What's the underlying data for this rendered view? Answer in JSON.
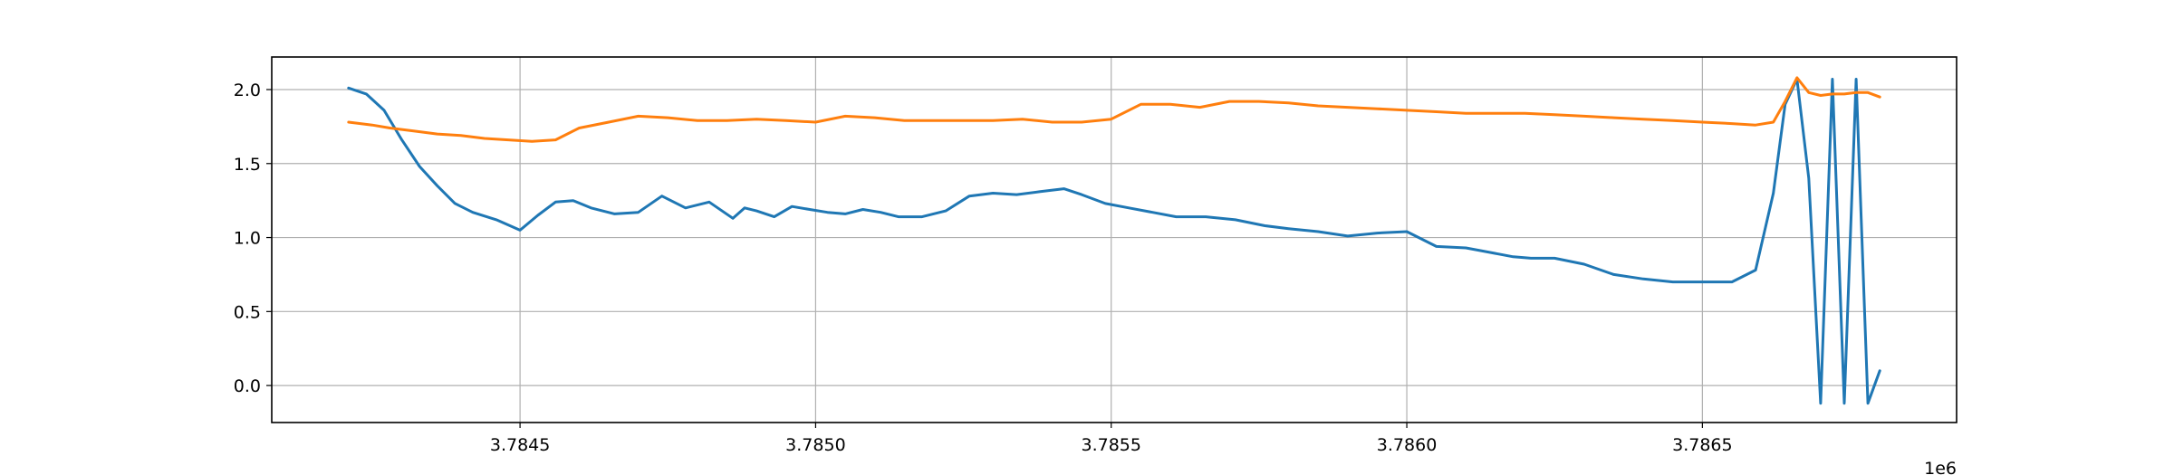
{
  "chart_data": {
    "type": "line",
    "title": "",
    "xlabel": "",
    "ylabel": "",
    "x_offset_label": "1e6",
    "xlim": [
      3.78408,
      3.78693
    ],
    "ylim": [
      -0.25,
      2.22
    ],
    "grid": true,
    "legend": "none",
    "x_ticks": [
      3.7845,
      3.785,
      3.7855,
      3.786,
      3.7865
    ],
    "x_tick_labels": [
      "3.7845",
      "3.7850",
      "3.7855",
      "3.7860",
      "3.7865"
    ],
    "y_ticks": [
      0.0,
      0.5,
      1.0,
      1.5,
      2.0
    ],
    "y_tick_labels": [
      "0.0",
      "0.5",
      "1.0",
      "1.5",
      "2.0"
    ],
    "series": [
      {
        "color": "#1f77b4",
        "x": [
          3.78421,
          3.78424,
          3.78427,
          3.7843,
          3.78433,
          3.78436,
          3.78439,
          3.78442,
          3.78446,
          3.7845,
          3.78453,
          3.78456,
          3.78459,
          3.78462,
          3.78466,
          3.7847,
          3.78474,
          3.78478,
          3.78482,
          3.78486,
          3.78488,
          3.7849,
          3.78493,
          3.78496,
          3.78499,
          3.78502,
          3.78505,
          3.78508,
          3.78511,
          3.78514,
          3.78518,
          3.78522,
          3.78526,
          3.7853,
          3.78534,
          3.78538,
          3.78542,
          3.78545,
          3.78549,
          3.78553,
          3.78557,
          3.78561,
          3.78566,
          3.78571,
          3.78576,
          3.7858,
          3.78585,
          3.7859,
          3.78595,
          3.786,
          3.78605,
          3.7861,
          3.78614,
          3.78618,
          3.78621,
          3.78625,
          3.7863,
          3.78635,
          3.7864,
          3.78645,
          3.7865,
          3.78655,
          3.78659,
          3.78662,
          3.78664,
          3.78666,
          3.78668,
          3.7867,
          3.78672,
          3.78674,
          3.78676,
          3.78678,
          3.7868,
          3.7868
        ],
        "y": [
          2.01,
          1.97,
          1.86,
          1.66,
          1.48,
          1.35,
          1.23,
          1.17,
          1.12,
          1.05,
          1.15,
          1.24,
          1.25,
          1.2,
          1.16,
          1.17,
          1.28,
          1.2,
          1.24,
          1.13,
          1.2,
          1.18,
          1.14,
          1.21,
          1.19,
          1.17,
          1.16,
          1.19,
          1.17,
          1.14,
          1.14,
          1.18,
          1.28,
          1.3,
          1.29,
          1.31,
          1.33,
          1.29,
          1.23,
          1.2,
          1.17,
          1.14,
          1.14,
          1.12,
          1.08,
          1.06,
          1.04,
          1.01,
          1.03,
          1.04,
          0.94,
          0.93,
          0.9,
          0.87,
          0.86,
          0.86,
          0.82,
          0.75,
          0.72,
          0.7,
          0.7,
          0.7,
          0.78,
          1.3,
          1.9,
          2.07,
          1.4,
          -0.12,
          2.07,
          -0.12,
          2.07,
          -0.12,
          0.1,
          0.1
        ]
      },
      {
        "color": "#ff7f0e",
        "x": [
          3.78421,
          3.78425,
          3.78428,
          3.78432,
          3.78436,
          3.7844,
          3.78444,
          3.78448,
          3.78452,
          3.78456,
          3.7846,
          3.78465,
          3.7847,
          3.78475,
          3.7848,
          3.78485,
          3.7849,
          3.78495,
          3.785,
          3.78505,
          3.7851,
          3.78515,
          3.7852,
          3.78525,
          3.7853,
          3.78535,
          3.7854,
          3.78545,
          3.7855,
          3.78555,
          3.7856,
          3.78565,
          3.7857,
          3.78575,
          3.7858,
          3.78585,
          3.7859,
          3.78595,
          3.786,
          3.78605,
          3.7861,
          3.78615,
          3.7862,
          3.78625,
          3.7863,
          3.78635,
          3.7864,
          3.78645,
          3.7865,
          3.78655,
          3.78659,
          3.78662,
          3.78664,
          3.78666,
          3.78668,
          3.7867,
          3.78672,
          3.78674,
          3.78676,
          3.78678,
          3.7868
        ],
        "y": [
          1.78,
          1.76,
          1.74,
          1.72,
          1.7,
          1.69,
          1.67,
          1.66,
          1.65,
          1.66,
          1.74,
          1.78,
          1.82,
          1.81,
          1.79,
          1.79,
          1.8,
          1.79,
          1.78,
          1.82,
          1.81,
          1.79,
          1.79,
          1.79,
          1.79,
          1.8,
          1.78,
          1.78,
          1.8,
          1.9,
          1.9,
          1.88,
          1.92,
          1.92,
          1.91,
          1.89,
          1.88,
          1.87,
          1.86,
          1.85,
          1.84,
          1.84,
          1.84,
          1.83,
          1.82,
          1.81,
          1.8,
          1.79,
          1.78,
          1.77,
          1.76,
          1.78,
          1.92,
          2.08,
          1.98,
          1.96,
          1.97,
          1.97,
          1.98,
          1.98,
          1.95
        ]
      }
    ]
  }
}
